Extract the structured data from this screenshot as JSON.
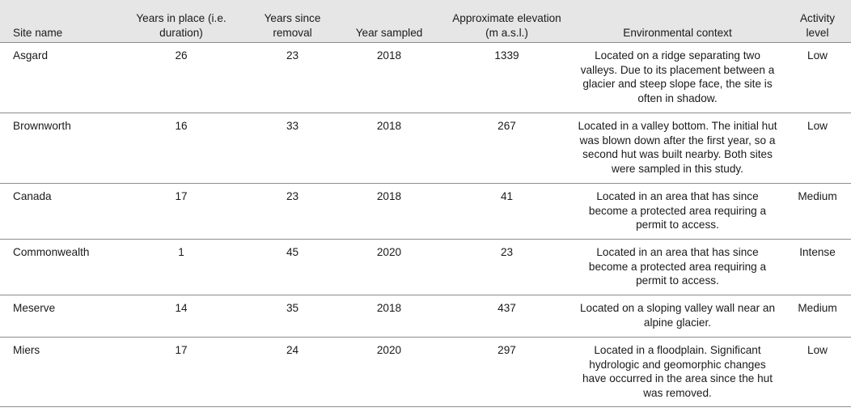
{
  "table": {
    "headers": [
      "Site name",
      "Years in place (i.e. duration)",
      "Years since removal",
      "Year sampled",
      "Approximate elevation (m a.s.l.)",
      "Environmental context",
      "Activity level"
    ],
    "rows": [
      {
        "site": "Asgard",
        "years_in_place": "26",
        "years_since_removal": "23",
        "year_sampled": "2018",
        "elevation": "1339",
        "context": "Located on a ridge separating two valleys. Due to its placement between a glacier and steep slope face, the site is often in shadow.",
        "activity": "Low"
      },
      {
        "site": "Brownworth",
        "years_in_place": "16",
        "years_since_removal": "33",
        "year_sampled": "2018",
        "elevation": "267",
        "context": "Located in a valley bottom. The initial hut was blown down after the first year, so a second hut was built nearby. Both sites were sampled in this study.",
        "activity": "Low"
      },
      {
        "site": "Canada",
        "years_in_place": "17",
        "years_since_removal": "23",
        "year_sampled": "2018",
        "elevation": "41",
        "context": "Located in an area that has since become a protected area requiring a permit to access.",
        "activity": "Medium"
      },
      {
        "site": "Commonwealth",
        "years_in_place": "1",
        "years_since_removal": "45",
        "year_sampled": "2020",
        "elevation": "23",
        "context": "Located in an area that has since become a protected area requiring a permit to access.",
        "activity": "Intense"
      },
      {
        "site": "Meserve",
        "years_in_place": "14",
        "years_since_removal": "35",
        "year_sampled": "2018",
        "elevation": "437",
        "context": "Located on a sloping valley wall near an alpine glacier.",
        "activity": "Medium"
      },
      {
        "site": "Miers",
        "years_in_place": "17",
        "years_since_removal": "24",
        "year_sampled": "2020",
        "elevation": "297",
        "context": "Located in a floodplain. Significant hydrologic and geomorphic changes have occurred in the area since the hut was removed.",
        "activity": "Low"
      }
    ]
  }
}
